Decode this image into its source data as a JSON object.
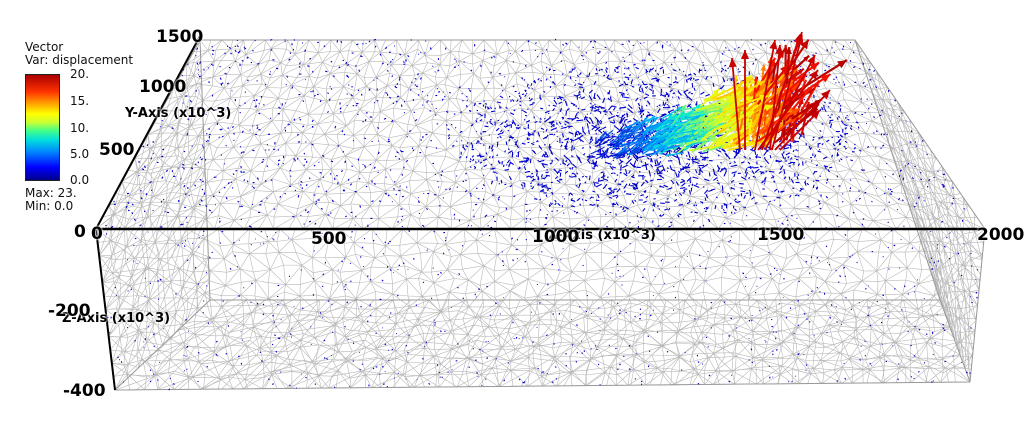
{
  "legend": {
    "title": "Vector",
    "variable": "Var: displacement",
    "ticks": [
      "20.",
      "15.",
      "10.",
      "5.0",
      "0.0"
    ],
    "max_label": "Max:  23.",
    "min_label": "Min:  0.0",
    "colors": [
      "#00008b",
      "#0000ff",
      "#00ffff",
      "#ffff00",
      "#ff0000",
      "#aa0000"
    ]
  },
  "axes": {
    "x_title": "X-Axis (x10^3)",
    "y_title": "Y-Axis (x10^3)",
    "z_title": "Z-Axis (x10^3)",
    "x_ticks": [
      "0",
      "500",
      "1000",
      "1500",
      "2000"
    ],
    "y_ticks": [
      "0",
      "500",
      "1000",
      "1500"
    ],
    "z_ticks": [
      "-200",
      "-400"
    ]
  },
  "scene": {
    "mesh_color": "#b8b8b8",
    "small_vector_color": "#0000cc"
  }
}
